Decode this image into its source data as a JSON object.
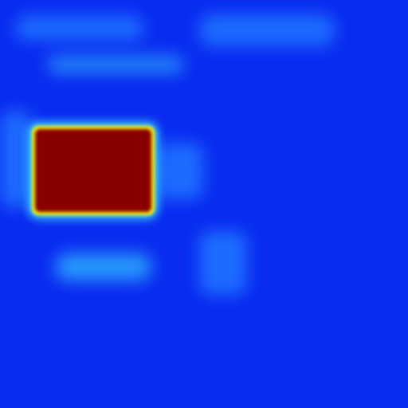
{
  "view": {
    "kind": "saliency heatmap",
    "colormap": "jet",
    "colors": {
      "background": "#0a2cf0",
      "background_deep": "#0020e8",
      "low_glow": "#1e6cff",
      "mid_glow": "#2fb4ff",
      "hot_edge_yellow": "#f8f000",
      "hot_edge_cyan": "#40e0ff",
      "hot_region": "#8a0000"
    }
  },
  "regions": [
    {
      "name": "hot-region",
      "intensity": 1.0
    },
    {
      "name": "warm-band-lower",
      "intensity": 0.45
    },
    {
      "name": "warm-band-upper",
      "intensity": 0.3
    }
  ]
}
